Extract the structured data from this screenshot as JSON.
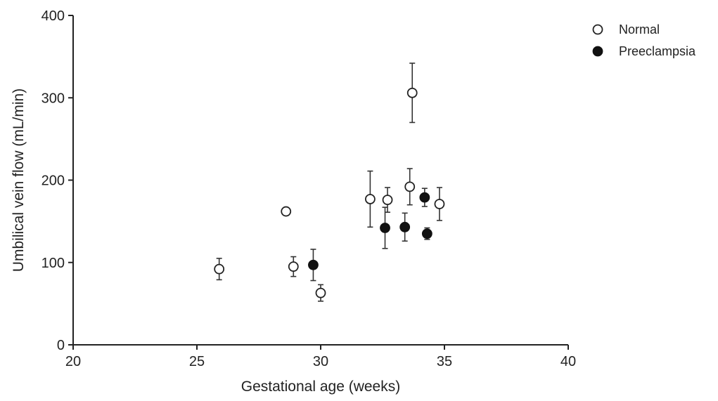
{
  "chart_data": {
    "type": "scatter",
    "title": "",
    "xlabel": "Gestational age (weeks)",
    "ylabel": "Umbilical vein flow (mL/min)",
    "xlim": [
      20,
      40
    ],
    "ylim": [
      0,
      400
    ],
    "xticks": [
      "20",
      "25",
      "30",
      "35",
      "40"
    ],
    "yticks": [
      "0",
      "100",
      "200",
      "300",
      "400"
    ],
    "grid": false,
    "legend_position": "top-right",
    "series": [
      {
        "name": "Normal",
        "marker": "open-circle",
        "color": "#222222",
        "points": [
          {
            "x": 25.9,
            "y": 92,
            "err": 13
          },
          {
            "x": 28.6,
            "y": 162,
            "err": 0
          },
          {
            "x": 28.9,
            "y": 95,
            "err": 12
          },
          {
            "x": 30.0,
            "y": 63,
            "err": 10
          },
          {
            "x": 32.0,
            "y": 177,
            "err": 34
          },
          {
            "x": 32.7,
            "y": 176,
            "err": 15
          },
          {
            "x": 33.6,
            "y": 192,
            "err": 22
          },
          {
            "x": 33.7,
            "y": 306,
            "err": 36
          },
          {
            "x": 34.8,
            "y": 171,
            "err": 20
          }
        ]
      },
      {
        "name": "Preeclampsia",
        "marker": "filled-circle",
        "color": "#111111",
        "points": [
          {
            "x": 29.7,
            "y": 97,
            "err": 19
          },
          {
            "x": 32.6,
            "y": 142,
            "err": 25
          },
          {
            "x": 33.4,
            "y": 143,
            "err": 17
          },
          {
            "x": 34.2,
            "y": 179,
            "err": 11
          },
          {
            "x": 34.3,
            "y": 135,
            "err": 7
          }
        ]
      }
    ]
  }
}
